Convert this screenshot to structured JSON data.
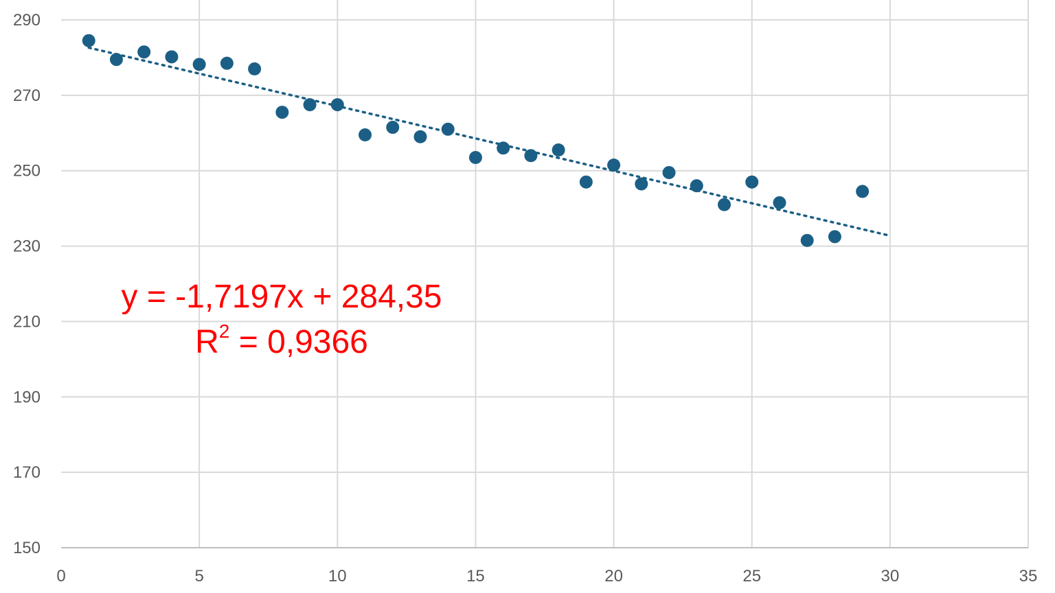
{
  "chart_data": {
    "type": "scatter",
    "title": "",
    "xlabel": "",
    "ylabel": "",
    "xlim": [
      0,
      35
    ],
    "ylim": [
      150,
      290
    ],
    "x_ticks": [
      0,
      5,
      10,
      15,
      20,
      25,
      30,
      35
    ],
    "y_ticks": [
      150,
      170,
      190,
      210,
      230,
      250,
      270,
      290
    ],
    "x_tick_labels": [
      "0",
      "5",
      "10",
      "15",
      "20",
      "25",
      "30",
      "35"
    ],
    "y_tick_labels": [
      "150",
      "170",
      "190",
      "210",
      "230",
      "250",
      "270",
      "290"
    ],
    "grid": true,
    "legend": "none",
    "colors": {
      "points": "#1c5f86",
      "trendline": "#1c5f86",
      "annotation": "#ff0000",
      "grid": "#d9d9d9"
    },
    "series": [
      {
        "x": [
          1,
          2,
          3,
          4,
          5,
          6,
          7,
          8,
          9,
          10,
          11,
          12,
          13,
          14,
          15,
          16,
          17,
          18,
          19,
          20,
          21,
          22,
          23,
          24,
          25,
          26,
          27,
          28,
          29
        ],
        "y": [
          284.5,
          279.5,
          281.5,
          280.2,
          278.2,
          278.5,
          277,
          265.5,
          267.5,
          267.5,
          259.5,
          261.5,
          259,
          261,
          253.5,
          256,
          254,
          255.5,
          247,
          251.5,
          246.5,
          249.5,
          246,
          241,
          247,
          241.5,
          231.5,
          232.5,
          244.5
        ]
      }
    ],
    "trendline": {
      "type": "linear",
      "slope": -1.7197,
      "intercept": 284.35,
      "x_range": [
        1,
        30
      ],
      "style": "dotted"
    },
    "annotations": {
      "equation": "y = -1,7197x + 284,35",
      "r2_base": "R",
      "r2_sup": "2",
      "r2_rest": " = 0,9366"
    }
  }
}
